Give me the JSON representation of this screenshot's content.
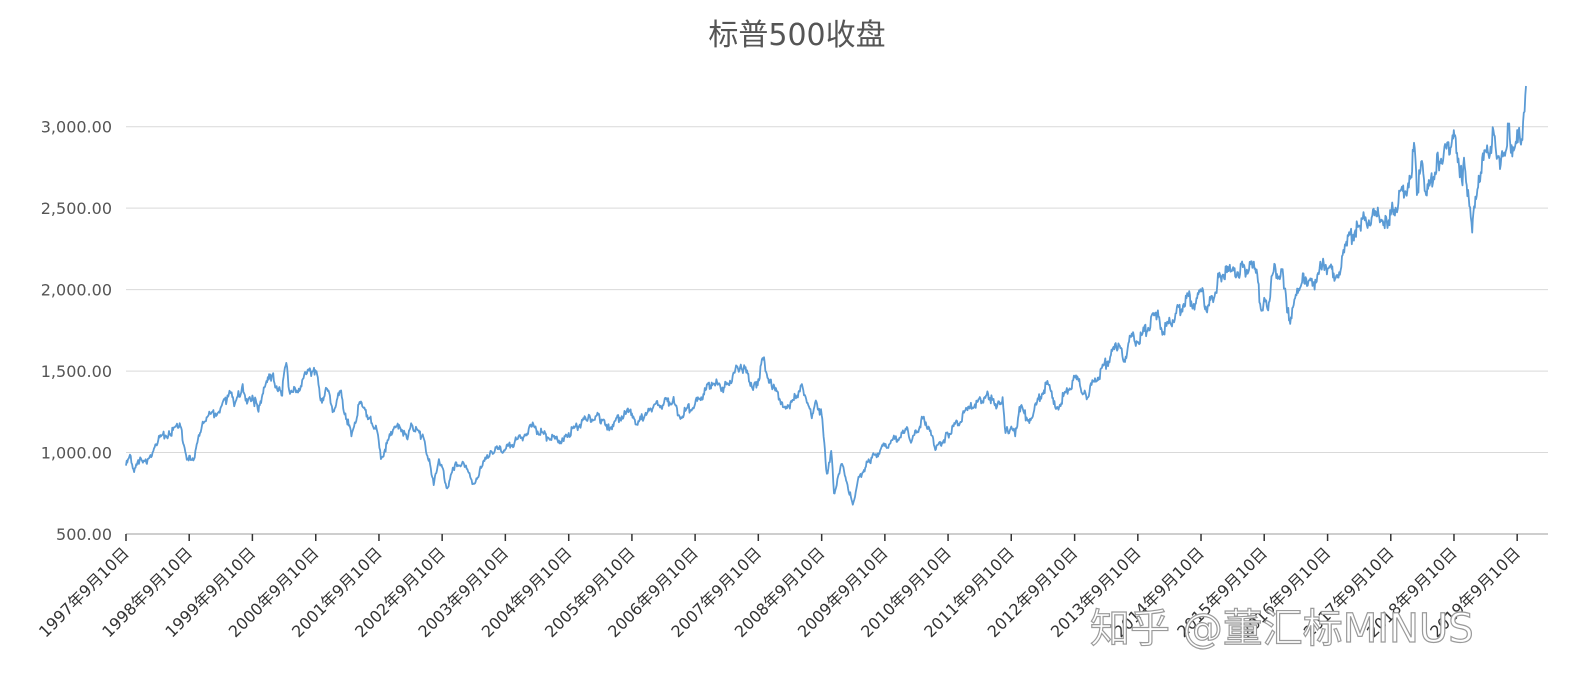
{
  "chart_data": {
    "type": "line",
    "title": "标普500收盘",
    "xlabel": "",
    "ylabel": "",
    "x_tick_labels": [
      "1997年9月10日",
      "1998年9月10日",
      "1999年9月10日",
      "2000年9月10日",
      "2001年9月10日",
      "2002年9月10日",
      "2003年9月10日",
      "2004年9月10日",
      "2005年9月10日",
      "2006年9月10日",
      "2007年9月10日",
      "2008年9月10日",
      "2009年9月10日",
      "2010年9月10日",
      "2011年9月10日",
      "2012年9月10日",
      "2013年9月10日",
      "2014年9月10日",
      "2015年9月10日",
      "2016年9月10日",
      "2017年9月10日",
      "2018年9月10日",
      "2019年9月10日"
    ],
    "y_tick_labels": [
      "500.00",
      "1,000.00",
      "1,500.00",
      "2,000.00",
      "2,500.00",
      "3,000.00"
    ],
    "y_ticks": [
      500,
      1000,
      1500,
      2000,
      2500,
      3000
    ],
    "ylim": [
      500,
      3250
    ],
    "xlim": [
      "1997-09-10",
      "2019-10-31"
    ],
    "grid": true,
    "series": [
      {
        "color": "#5b9bd5",
        "points": [
          [
            "1997-09-10",
            920
          ],
          [
            "1997-10-07",
            980
          ],
          [
            "1997-10-27",
            880
          ],
          [
            "1997-12-01",
            970
          ],
          [
            "1998-01-09",
            930
          ],
          [
            "1998-02-27",
            1050
          ],
          [
            "1998-03-31",
            1100
          ],
          [
            "1998-05-20",
            1110
          ],
          [
            "1998-07-17",
            1180
          ],
          [
            "1998-08-31",
            960
          ],
          [
            "1998-09-10",
            980
          ],
          [
            "1998-10-08",
            960
          ],
          [
            "1998-11-27",
            1190
          ],
          [
            "1998-12-31",
            1230
          ],
          [
            "1999-02-09",
            1240
          ],
          [
            "1999-04-15",
            1320
          ],
          [
            "1999-05-13",
            1370
          ],
          [
            "1999-06-01",
            1300
          ],
          [
            "1999-07-16",
            1420
          ],
          [
            "1999-08-10",
            1300
          ],
          [
            "1999-09-10",
            1350
          ],
          [
            "1999-10-15",
            1250
          ],
          [
            "1999-11-15",
            1400
          ],
          [
            "1999-12-31",
            1470
          ],
          [
            "2000-02-25",
            1350
          ],
          [
            "2000-03-24",
            1550
          ],
          [
            "2000-04-14",
            1360
          ],
          [
            "2000-05-23",
            1380
          ],
          [
            "2000-07-17",
            1480
          ],
          [
            "2000-08-31",
            1520
          ],
          [
            "2000-09-10",
            1500
          ],
          [
            "2000-10-12",
            1330
          ],
          [
            "2000-11-15",
            1390
          ],
          [
            "2000-12-20",
            1260
          ],
          [
            "2001-01-30",
            1370
          ],
          [
            "2001-02-28",
            1240
          ],
          [
            "2001-04-04",
            1100
          ],
          [
            "2001-05-21",
            1310
          ],
          [
            "2001-07-20",
            1210
          ],
          [
            "2001-08-31",
            1130
          ],
          [
            "2001-09-21",
            960
          ],
          [
            "2001-11-30",
            1140
          ],
          [
            "2002-01-04",
            1170
          ],
          [
            "2002-02-22",
            1080
          ],
          [
            "2002-03-19",
            1170
          ],
          [
            "2002-05-17",
            1100
          ],
          [
            "2002-06-28",
            960
          ],
          [
            "2002-07-23",
            800
          ],
          [
            "2002-08-22",
            960
          ],
          [
            "2002-09-10",
            910
          ],
          [
            "2002-10-09",
            780
          ],
          [
            "2002-11-27",
            940
          ],
          [
            "2003-01-14",
            930
          ],
          [
            "2003-03-11",
            810
          ],
          [
            "2003-05-01",
            920
          ],
          [
            "2003-06-17",
            1010
          ],
          [
            "2003-09-10",
            1020
          ],
          [
            "2003-12-31",
            1110
          ],
          [
            "2004-02-11",
            1160
          ],
          [
            "2004-05-17",
            1090
          ],
          [
            "2004-08-12",
            1070
          ],
          [
            "2004-09-10",
            1120
          ],
          [
            "2004-12-31",
            1210
          ],
          [
            "2005-03-07",
            1220
          ],
          [
            "2005-04-20",
            1140
          ],
          [
            "2005-08-02",
            1250
          ],
          [
            "2005-09-10",
            1240
          ],
          [
            "2005-10-13",
            1170
          ],
          [
            "2005-12-14",
            1270
          ],
          [
            "2006-05-05",
            1320
          ],
          [
            "2006-06-13",
            1220
          ],
          [
            "2006-09-10",
            1300
          ],
          [
            "2006-12-15",
            1430
          ],
          [
            "2007-02-27",
            1400
          ],
          [
            "2007-06-01",
            1540
          ],
          [
            "2007-08-15",
            1410
          ],
          [
            "2007-09-10",
            1450
          ],
          [
            "2007-10-09",
            1570
          ],
          [
            "2007-11-26",
            1410
          ],
          [
            "2008-01-22",
            1310
          ],
          [
            "2008-03-10",
            1270
          ],
          [
            "2008-05-19",
            1420
          ],
          [
            "2008-07-15",
            1210
          ],
          [
            "2008-08-11",
            1310
          ],
          [
            "2008-09-10",
            1230
          ],
          [
            "2008-10-10",
            870
          ],
          [
            "2008-11-04",
            1010
          ],
          [
            "2008-11-20",
            750
          ],
          [
            "2009-01-06",
            930
          ],
          [
            "2009-03-09",
            680
          ],
          [
            "2009-04-15",
            850
          ],
          [
            "2009-06-12",
            950
          ],
          [
            "2009-09-10",
            1040
          ],
          [
            "2009-12-31",
            1120
          ],
          [
            "2010-01-19",
            1150
          ],
          [
            "2010-02-08",
            1060
          ],
          [
            "2010-04-23",
            1220
          ],
          [
            "2010-07-02",
            1020
          ],
          [
            "2010-09-10",
            1110
          ],
          [
            "2010-12-31",
            1260
          ],
          [
            "2011-04-29",
            1360
          ],
          [
            "2011-06-15",
            1270
          ],
          [
            "2011-07-22",
            1340
          ],
          [
            "2011-08-08",
            1120
          ],
          [
            "2011-09-10",
            1160
          ],
          [
            "2011-10-03",
            1100
          ],
          [
            "2011-10-27",
            1280
          ],
          [
            "2011-12-19",
            1200
          ],
          [
            "2012-04-02",
            1420
          ],
          [
            "2012-06-01",
            1280
          ],
          [
            "2012-09-14",
            1460
          ],
          [
            "2012-11-15",
            1350
          ],
          [
            "2013-05-21",
            1670
          ],
          [
            "2013-06-24",
            1570
          ],
          [
            "2013-08-02",
            1710
          ],
          [
            "2013-09-10",
            1680
          ],
          [
            "2013-12-31",
            1850
          ],
          [
            "2014-02-03",
            1740
          ],
          [
            "2014-06-30",
            1960
          ],
          [
            "2014-08-07",
            1910
          ],
          [
            "2014-09-18",
            2010
          ],
          [
            "2014-10-15",
            1860
          ],
          [
            "2014-12-29",
            2090
          ],
          [
            "2015-02-27",
            2110
          ],
          [
            "2015-05-21",
            2130
          ],
          [
            "2015-07-20",
            2130
          ],
          [
            "2015-08-25",
            1870
          ],
          [
            "2015-09-10",
            1950
          ],
          [
            "2015-09-29",
            1880
          ],
          [
            "2015-11-03",
            2110
          ],
          [
            "2015-12-29",
            2080
          ],
          [
            "2016-01-20",
            1860
          ],
          [
            "2016-02-11",
            1830
          ],
          [
            "2016-04-20",
            2100
          ],
          [
            "2016-06-27",
            2000
          ],
          [
            "2016-08-15",
            2190
          ],
          [
            "2016-09-10",
            2130
          ],
          [
            "2016-11-04",
            2090
          ],
          [
            "2016-12-31",
            2270
          ],
          [
            "2017-03-01",
            2400
          ],
          [
            "2017-06-19",
            2450
          ],
          [
            "2017-08-18",
            2420
          ],
          [
            "2017-09-10",
            2460
          ],
          [
            "2017-12-31",
            2680
          ],
          [
            "2018-01-26",
            2870
          ],
          [
            "2018-02-08",
            2580
          ],
          [
            "2018-03-09",
            2790
          ],
          [
            "2018-04-02",
            2580
          ],
          [
            "2018-06-12",
            2790
          ],
          [
            "2018-08-29",
            2910
          ],
          [
            "2018-09-20",
            2930
          ],
          [
            "2018-10-29",
            2640
          ],
          [
            "2018-11-07",
            2810
          ],
          [
            "2018-12-24",
            2350
          ],
          [
            "2019-01-31",
            2700
          ],
          [
            "2019-04-30",
            2950
          ],
          [
            "2019-05-08",
            2880
          ],
          [
            "2019-06-03",
            2740
          ],
          [
            "2019-07-26",
            3020
          ],
          [
            "2019-08-05",
            2840
          ],
          [
            "2019-09-10",
            2980
          ],
          [
            "2019-10-02",
            2890
          ],
          [
            "2019-10-31",
            3250
          ]
        ]
      }
    ]
  },
  "watermark": "知乎 @董汇标MINUS"
}
